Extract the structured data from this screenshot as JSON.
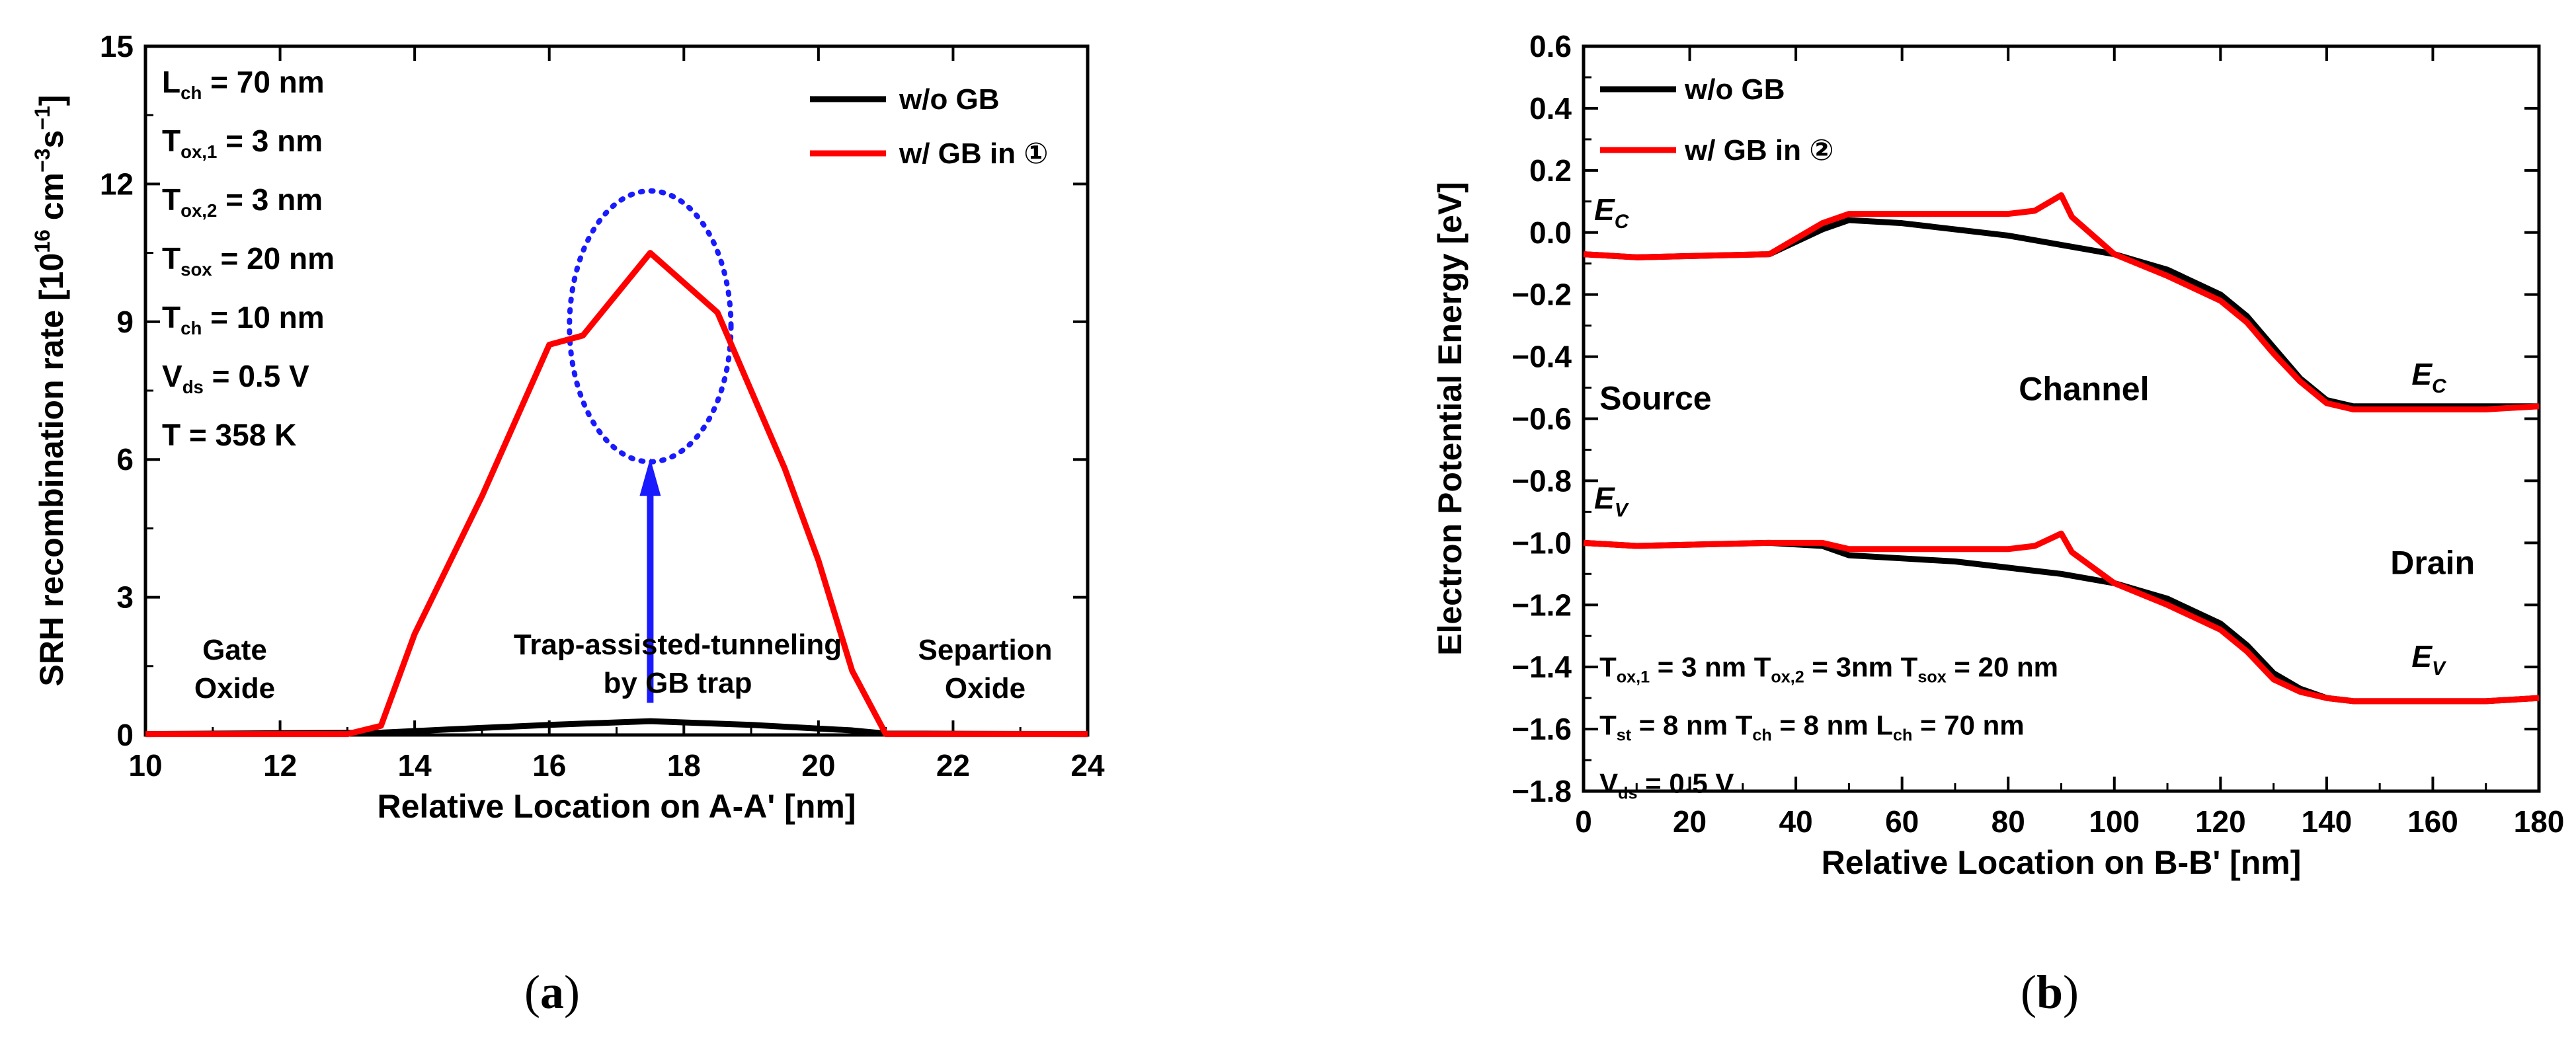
{
  "chart_data": [
    {
      "type": "line",
      "panel_label": "a",
      "xlabel": "Relative Location on A-A' [nm]",
      "ylabel": {
        "prefix": "SRH recombination rate [10",
        "exp1": "16",
        "mid": " cm",
        "exp2": "−3",
        "mid2": "s",
        "exp3": "−1",
        "suffix": "]"
      },
      "xlim": [
        10,
        24
      ],
      "ylim": [
        0,
        15
      ],
      "xticks": [
        10,
        12,
        14,
        16,
        18,
        20,
        22,
        24
      ],
      "yticks": [
        0,
        3,
        6,
        9,
        12,
        15
      ],
      "legend_position": "top-right",
      "series": [
        {
          "name": "w/o GB",
          "color": "#000000",
          "x": [
            10,
            13.5,
            14.5,
            16,
            17.5,
            19,
            20.5,
            21,
            24
          ],
          "y": [
            0.02,
            0.05,
            0.12,
            0.22,
            0.3,
            0.22,
            0.1,
            0.03,
            0.02
          ]
        },
        {
          "name": "w/ GB in ①",
          "color": "#ff0000",
          "x": [
            10,
            13,
            13.5,
            14,
            15,
            16,
            16.5,
            17.5,
            18.5,
            19,
            19.5,
            20,
            20.5,
            21,
            24
          ],
          "y": [
            0.02,
            0.02,
            0.2,
            2.2,
            5.2,
            8.5,
            8.7,
            10.5,
            9.2,
            7.5,
            5.8,
            3.8,
            1.4,
            0.02,
            0.02
          ]
        }
      ],
      "params": [
        {
          "sym": "L",
          "sub": "ch",
          "val": "= 70 nm"
        },
        {
          "sym": "T",
          "sub": "ox,1",
          "val": "= 3 nm"
        },
        {
          "sym": "T",
          "sub": "ox,2",
          "val": "= 3 nm"
        },
        {
          "sym": "T",
          "sub": "sox",
          "val": "= 20 nm"
        },
        {
          "sym": "T",
          "sub": "ch",
          "val": "= 10 nm"
        },
        {
          "sym": "V",
          "sub": "ds",
          "val": "= 0.5 V"
        },
        {
          "sym": "T",
          "sub": "",
          "val": "= 358 K"
        }
      ],
      "annotations": {
        "gate_oxide": [
          "Gate",
          "Oxide"
        ],
        "separation_oxide": [
          "Separtion",
          "Oxide"
        ],
        "trap_tunneling": [
          "Trap-assisted-tunneling",
          "by GB trap"
        ],
        "circle": {
          "cx": 17.5,
          "cy": 8.9,
          "r_x": 1.2,
          "r_y": 2.95,
          "color": "#1a1aff"
        },
        "arrow": {
          "x": 17.5,
          "y_from": 0.7,
          "y_to": 6.0,
          "color": "#1a1aff"
        }
      }
    },
    {
      "type": "line",
      "panel_label": "b",
      "xlabel": "Relative Location on B-B' [nm]",
      "ylabel": "Electron Potential Energy [eV]",
      "xlim": [
        0,
        180
      ],
      "ylim": [
        -1.8,
        0.6
      ],
      "xticks": [
        0,
        20,
        40,
        60,
        80,
        100,
        120,
        140,
        160,
        180
      ],
      "yticks": [
        0.6,
        0.4,
        0.2,
        0.0,
        -0.2,
        -0.4,
        -0.6,
        -0.8,
        -1.0,
        -1.2,
        -1.4,
        -1.6,
        -1.8
      ],
      "ytick_labels": [
        "0.6",
        "0.4",
        "0.2",
        "0.0",
        "−0.2",
        "−0.4",
        "−0.6",
        "−0.8",
        "−1.0",
        "−1.2",
        "−1.4",
        "−1.6",
        "−1.8"
      ],
      "legend_position": "top-left",
      "series": [
        {
          "name": "w/o GB",
          "color": "#000000",
          "band": "Ec",
          "x": [
            0,
            10,
            35,
            45,
            50,
            60,
            70,
            80,
            90,
            100,
            110,
            120,
            125,
            130,
            135,
            140,
            145,
            150,
            160,
            170,
            180
          ],
          "y": [
            -0.07,
            -0.08,
            -0.07,
            0.01,
            0.04,
            0.03,
            0.01,
            -0.01,
            -0.04,
            -0.07,
            -0.12,
            -0.2,
            -0.27,
            -0.37,
            -0.47,
            -0.54,
            -0.56,
            -0.56,
            -0.56,
            -0.56,
            -0.56
          ]
        },
        {
          "name": "w/ GB in ②",
          "color": "#ff0000",
          "band": "Ec",
          "x": [
            0,
            10,
            35,
            45,
            50,
            60,
            70,
            80,
            85,
            90,
            92,
            100,
            110,
            120,
            125,
            130,
            135,
            140,
            145,
            150,
            160,
            170,
            180
          ],
          "y": [
            -0.07,
            -0.08,
            -0.07,
            0.03,
            0.06,
            0.06,
            0.06,
            0.06,
            0.07,
            0.12,
            0.05,
            -0.07,
            -0.14,
            -0.22,
            -0.29,
            -0.39,
            -0.48,
            -0.55,
            -0.57,
            -0.57,
            -0.57,
            -0.57,
            -0.56
          ]
        },
        {
          "name": "w/o GB",
          "color": "#000000",
          "band": "Ev",
          "x": [
            0,
            10,
            35,
            45,
            50,
            60,
            70,
            80,
            90,
            100,
            110,
            120,
            125,
            130,
            135,
            140,
            145,
            150,
            160,
            170,
            180
          ],
          "y": [
            -1.0,
            -1.01,
            -1.0,
            -1.01,
            -1.04,
            -1.05,
            -1.06,
            -1.08,
            -1.1,
            -1.13,
            -1.18,
            -1.26,
            -1.33,
            -1.42,
            -1.47,
            -1.5,
            -1.51,
            -1.51,
            -1.51,
            -1.51,
            -1.5
          ]
        },
        {
          "name": "w/ GB in ②",
          "color": "#ff0000",
          "band": "Ev",
          "x": [
            0,
            10,
            35,
            45,
            50,
            60,
            70,
            80,
            85,
            90,
            92,
            100,
            110,
            120,
            125,
            130,
            135,
            140,
            145,
            150,
            160,
            170,
            180
          ],
          "y": [
            -1.0,
            -1.01,
            -1.0,
            -1.0,
            -1.02,
            -1.02,
            -1.02,
            -1.02,
            -1.01,
            -0.97,
            -1.03,
            -1.13,
            -1.2,
            -1.28,
            -1.35,
            -1.44,
            -1.48,
            -1.5,
            -1.51,
            -1.51,
            -1.51,
            -1.51,
            -1.5
          ]
        }
      ],
      "band_labels": [
        {
          "sym": "E",
          "sub": "C",
          "x": 2,
          "y": 0.04
        },
        {
          "sym": "E",
          "sub": "C",
          "x": 156,
          "y": -0.49
        },
        {
          "sym": "E",
          "sub": "V",
          "x": 2,
          "y": -0.89
        },
        {
          "sym": "E",
          "sub": "V",
          "x": 156,
          "y": -1.4
        }
      ],
      "region_labels": [
        {
          "text": "Source",
          "x": 3,
          "y": -0.57
        },
        {
          "text": "Channel",
          "x": 82,
          "y": -0.54
        },
        {
          "text": "Drain",
          "x": 152,
          "y": -1.1
        }
      ],
      "params_lines": [
        [
          {
            "sym": "T",
            "sub": "ox,1",
            "val": "= 3 nm "
          },
          {
            "sym": "T",
            "sub": "ox,2",
            "val": "= 3nm "
          },
          {
            "sym": "T",
            "sub": "sox",
            "val": "= 20 nm"
          }
        ],
        [
          {
            "sym": "T",
            "sub": "st",
            "val": "= 8 nm "
          },
          {
            "sym": "T",
            "sub": "ch",
            "val": "= 8 nm "
          },
          {
            "sym": "L",
            "sub": "ch",
            "val": "= 70 nm"
          }
        ],
        [
          {
            "sym": "V",
            "sub": "ds",
            "val": "= 0.5 V"
          }
        ]
      ]
    }
  ],
  "captions": {
    "a": {
      "open": "(",
      "letter": "a",
      "close": ")"
    },
    "b": {
      "open": "(",
      "letter": "b",
      "close": ")"
    }
  }
}
